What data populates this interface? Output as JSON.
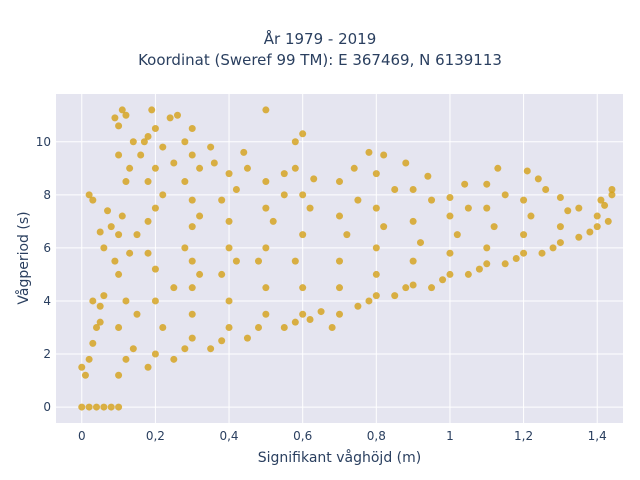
{
  "chart_data": {
    "type": "scatter",
    "title_lines": [
      "År 1979 - 2019",
      "Koordinat (Sweref 99 TM): E 367469, N 6139113"
    ],
    "xlabel": "Signifikant våghöjd (m)",
    "ylabel": "Vågperiod (s)",
    "xlim": [
      -0.07,
      1.47
    ],
    "ylim": [
      -0.6,
      11.8
    ],
    "xticks": [
      {
        "v": 0,
        "label": "0"
      },
      {
        "v": 0.2,
        "label": "0,2"
      },
      {
        "v": 0.4,
        "label": "0,4"
      },
      {
        "v": 0.6,
        "label": "0,6"
      },
      {
        "v": 0.8,
        "label": "0,8"
      },
      {
        "v": 1,
        "label": "1"
      },
      {
        "v": 1.2,
        "label": "1,2"
      },
      {
        "v": 1.4,
        "label": "1,4"
      }
    ],
    "yticks": [
      {
        "v": 0,
        "label": "0"
      },
      {
        "v": 2,
        "label": "2"
      },
      {
        "v": 4,
        "label": "4"
      },
      {
        "v": 6,
        "label": "6"
      },
      {
        "v": 8,
        "label": "8"
      },
      {
        "v": 10,
        "label": "10"
      }
    ],
    "grid": true,
    "marker_color": "#D4A017",
    "plot_bg": "#E5E5F0",
    "points": [
      [
        0.0,
        0.0
      ],
      [
        0.02,
        0.0
      ],
      [
        0.04,
        0.0
      ],
      [
        0.06,
        0.0
      ],
      [
        0.08,
        0.0
      ],
      [
        0.1,
        0.0
      ],
      [
        0.0,
        1.5
      ],
      [
        0.01,
        1.2
      ],
      [
        0.02,
        1.8
      ],
      [
        0.03,
        2.4
      ],
      [
        0.04,
        3.0
      ],
      [
        0.05,
        3.8
      ],
      [
        0.06,
        4.2
      ],
      [
        0.03,
        4.0
      ],
      [
        0.05,
        3.2
      ],
      [
        0.02,
        8.0
      ],
      [
        0.03,
        7.8
      ],
      [
        0.05,
        6.6
      ],
      [
        0.06,
        6.0
      ],
      [
        0.08,
        6.8
      ],
      [
        0.09,
        5.5
      ],
      [
        0.07,
        7.4
      ],
      [
        0.1,
        1.2
      ],
      [
        0.12,
        1.8
      ],
      [
        0.14,
        2.2
      ],
      [
        0.1,
        3.0
      ],
      [
        0.12,
        4.0
      ],
      [
        0.1,
        5.0
      ],
      [
        0.13,
        5.8
      ],
      [
        0.15,
        3.5
      ],
      [
        0.1,
        6.5
      ],
      [
        0.11,
        7.2
      ],
      [
        0.12,
        8.5
      ],
      [
        0.13,
        9.0
      ],
      [
        0.1,
        9.5
      ],
      [
        0.14,
        10.0
      ],
      [
        0.1,
        10.6
      ],
      [
        0.11,
        11.2
      ],
      [
        0.09,
        10.9
      ],
      [
        0.12,
        11.0
      ],
      [
        0.18,
        1.5
      ],
      [
        0.2,
        2.0
      ],
      [
        0.22,
        3.0
      ],
      [
        0.2,
        4.0
      ],
      [
        0.25,
        4.5
      ],
      [
        0.2,
        5.2
      ],
      [
        0.18,
        5.8
      ],
      [
        0.15,
        6.5
      ],
      [
        0.18,
        7.0
      ],
      [
        0.2,
        7.5
      ],
      [
        0.22,
        8.0
      ],
      [
        0.18,
        8.5
      ],
      [
        0.2,
        9.0
      ],
      [
        0.16,
        9.5
      ],
      [
        0.22,
        9.8
      ],
      [
        0.18,
        10.2
      ],
      [
        0.2,
        10.5
      ],
      [
        0.19,
        11.2
      ],
      [
        0.24,
        10.9
      ],
      [
        0.17,
        10.0
      ],
      [
        0.25,
        9.2
      ],
      [
        0.25,
        1.8
      ],
      [
        0.28,
        2.2
      ],
      [
        0.3,
        2.6
      ],
      [
        0.3,
        3.5
      ],
      [
        0.3,
        4.5
      ],
      [
        0.32,
        5.0
      ],
      [
        0.3,
        5.5
      ],
      [
        0.28,
        6.0
      ],
      [
        0.3,
        6.8
      ],
      [
        0.32,
        7.2
      ],
      [
        0.3,
        7.8
      ],
      [
        0.28,
        8.5
      ],
      [
        0.32,
        9.0
      ],
      [
        0.3,
        9.5
      ],
      [
        0.28,
        10.0
      ],
      [
        0.3,
        10.5
      ],
      [
        0.35,
        9.8
      ],
      [
        0.26,
        11.0
      ],
      [
        0.35,
        2.2
      ],
      [
        0.38,
        2.5
      ],
      [
        0.4,
        3.0
      ],
      [
        0.4,
        4.0
      ],
      [
        0.38,
        5.0
      ],
      [
        0.42,
        5.5
      ],
      [
        0.4,
        6.0
      ],
      [
        0.4,
        7.0
      ],
      [
        0.38,
        7.8
      ],
      [
        0.42,
        8.2
      ],
      [
        0.4,
        8.8
      ],
      [
        0.36,
        9.2
      ],
      [
        0.45,
        9.0
      ],
      [
        0.5,
        11.2
      ],
      [
        0.44,
        9.6
      ],
      [
        0.45,
        2.6
      ],
      [
        0.48,
        3.0
      ],
      [
        0.5,
        3.5
      ],
      [
        0.5,
        4.5
      ],
      [
        0.48,
        5.5
      ],
      [
        0.5,
        6.0
      ],
      [
        0.52,
        7.0
      ],
      [
        0.5,
        7.5
      ],
      [
        0.55,
        8.0
      ],
      [
        0.5,
        8.5
      ],
      [
        0.55,
        8.8
      ],
      [
        0.55,
        3.0
      ],
      [
        0.58,
        3.2
      ],
      [
        0.6,
        3.5
      ],
      [
        0.6,
        4.5
      ],
      [
        0.58,
        5.5
      ],
      [
        0.6,
        6.5
      ],
      [
        0.62,
        7.5
      ],
      [
        0.6,
        8.0
      ],
      [
        0.58,
        9.0
      ],
      [
        0.6,
        10.3
      ],
      [
        0.58,
        10.0
      ],
      [
        0.63,
        8.6
      ],
      [
        0.62,
        3.3
      ],
      [
        0.65,
        3.6
      ],
      [
        0.68,
        3.0
      ],
      [
        0.7,
        3.5
      ],
      [
        0.7,
        4.5
      ],
      [
        0.7,
        5.5
      ],
      [
        0.72,
        6.5
      ],
      [
        0.7,
        7.2
      ],
      [
        0.75,
        7.8
      ],
      [
        0.7,
        8.5
      ],
      [
        0.74,
        9.0
      ],
      [
        0.75,
        3.8
      ],
      [
        0.78,
        4.0
      ],
      [
        0.8,
        4.2
      ],
      [
        0.8,
        5.0
      ],
      [
        0.8,
        6.0
      ],
      [
        0.82,
        6.8
      ],
      [
        0.8,
        7.5
      ],
      [
        0.85,
        8.2
      ],
      [
        0.8,
        8.8
      ],
      [
        0.82,
        9.5
      ],
      [
        0.78,
        9.6
      ],
      [
        0.88,
        9.2
      ],
      [
        0.85,
        4.2
      ],
      [
        0.88,
        4.5
      ],
      [
        0.9,
        4.6
      ],
      [
        0.9,
        5.5
      ],
      [
        0.92,
        6.2
      ],
      [
        0.9,
        7.0
      ],
      [
        0.95,
        7.8
      ],
      [
        0.9,
        8.2
      ],
      [
        0.94,
        8.7
      ],
      [
        0.95,
        4.5
      ],
      [
        0.98,
        4.8
      ],
      [
        1.0,
        5.0
      ],
      [
        1.0,
        5.8
      ],
      [
        1.02,
        6.5
      ],
      [
        1.0,
        7.2
      ],
      [
        1.05,
        7.5
      ],
      [
        1.0,
        7.9
      ],
      [
        1.04,
        8.4
      ],
      [
        1.05,
        5.0
      ],
      [
        1.08,
        5.2
      ],
      [
        1.1,
        5.4
      ],
      [
        1.1,
        6.0
      ],
      [
        1.12,
        6.8
      ],
      [
        1.1,
        7.5
      ],
      [
        1.15,
        8.0
      ],
      [
        1.13,
        9.0
      ],
      [
        1.1,
        8.4
      ],
      [
        1.15,
        5.4
      ],
      [
        1.18,
        5.6
      ],
      [
        1.2,
        5.8
      ],
      [
        1.2,
        6.5
      ],
      [
        1.22,
        7.2
      ],
      [
        1.2,
        7.8
      ],
      [
        1.24,
        8.6
      ],
      [
        1.26,
        8.2
      ],
      [
        1.21,
        8.9
      ],
      [
        1.25,
        5.8
      ],
      [
        1.28,
        6.0
      ],
      [
        1.3,
        6.2
      ],
      [
        1.3,
        6.8
      ],
      [
        1.32,
        7.4
      ],
      [
        1.3,
        7.9
      ],
      [
        1.35,
        7.5
      ],
      [
        1.35,
        6.4
      ],
      [
        1.38,
        6.6
      ],
      [
        1.4,
        6.8
      ],
      [
        1.4,
        7.2
      ],
      [
        1.42,
        7.6
      ],
      [
        1.44,
        8.0
      ],
      [
        1.44,
        8.2
      ],
      [
        1.43,
        7.0
      ],
      [
        1.41,
        7.8
      ]
    ]
  }
}
